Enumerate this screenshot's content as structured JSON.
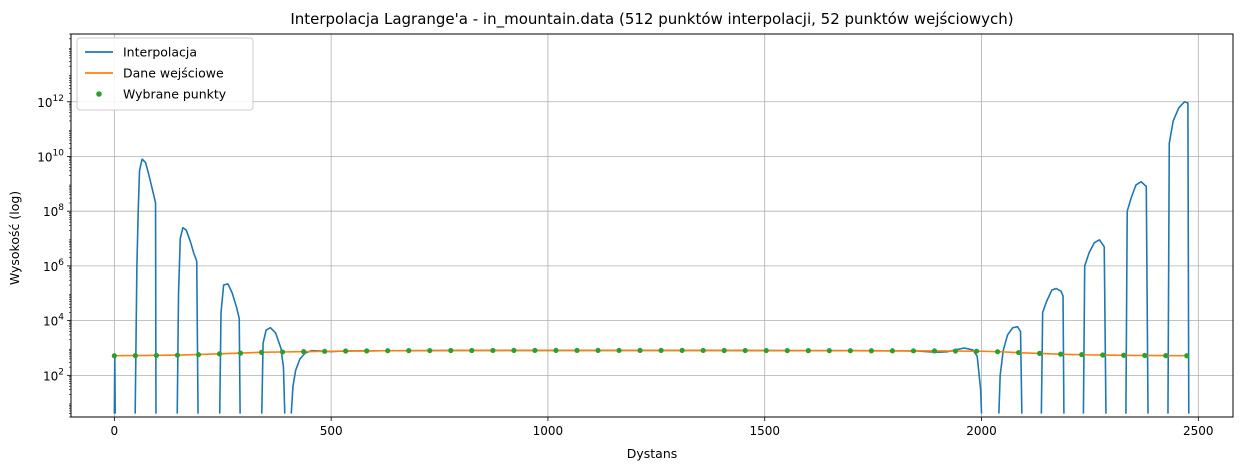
{
  "chart_data": {
    "type": "line",
    "title": "Interpolacja Lagrange'a - in_mountain.data (512 punktów interpolacji, 52 punktów wejściowych)",
    "xlabel": "Dystans",
    "ylabel": "Wysokość (log)",
    "yscale": "log",
    "xlim": [
      -100,
      2580
    ],
    "ylim": [
      3,
      300000000000000
    ],
    "grid": true,
    "legend_position": "top-left",
    "xticks": [
      0,
      500,
      1000,
      1500,
      2000,
      2500
    ],
    "xtick_labels": [
      "0",
      "500",
      "1000",
      "1500",
      "2000",
      "2500"
    ],
    "yticks": [
      100,
      10000,
      1000000,
      100000000,
      10000000000,
      1000000000000
    ],
    "ytick_labels": [
      {
        "base": "10",
        "exp": "2"
      },
      {
        "base": "10",
        "exp": "4"
      },
      {
        "base": "10",
        "exp": "6"
      },
      {
        "base": "10",
        "exp": "8"
      },
      {
        "base": "10",
        "exp": "10"
      },
      {
        "base": "10",
        "exp": "12"
      }
    ],
    "series": [
      {
        "name": "Interpolacja",
        "color": "#1f77b4",
        "segments": [
          [
            [
              0,
              4
            ],
            [
              1,
              520
            ],
            [
              2,
              4
            ]
          ],
          [
            [
              48,
              4
            ],
            [
              52,
              1000000
            ],
            [
              55,
              100000000
            ],
            [
              58,
              3000000000
            ],
            [
              64,
              8000000000
            ],
            [
              72,
              6000000000
            ],
            [
              80,
              2000000000
            ],
            [
              88,
              600000000
            ],
            [
              95,
              200000000
            ],
            [
              96,
              4
            ]
          ],
          [
            [
              145,
              4
            ],
            [
              148,
              100000
            ],
            [
              152,
              10000000
            ],
            [
              158,
              25000000
            ],
            [
              166,
              20000000
            ],
            [
              175,
              8000000
            ],
            [
              183,
              3000000
            ],
            [
              190,
              1500000
            ],
            [
              193,
              4
            ]
          ],
          [
            [
              243,
              4
            ],
            [
              246,
              20000
            ],
            [
              252,
              200000
            ],
            [
              262,
              220000
            ],
            [
              272,
              100000
            ],
            [
              282,
              30000
            ],
            [
              288,
              12000
            ],
            [
              290,
              4
            ]
          ],
          [
            [
              340,
              4
            ],
            [
              343,
              1500
            ],
            [
              350,
              4500
            ],
            [
              360,
              5500
            ],
            [
              372,
              3500
            ],
            [
              384,
              1000
            ],
            [
              390,
              200
            ],
            [
              393,
              4
            ]
          ],
          [
            [
              408,
              4
            ],
            [
              412,
              40
            ],
            [
              418,
              150
            ],
            [
              428,
              400
            ],
            [
              440,
              650
            ],
            [
              455,
              800
            ],
            [
              470,
              780
            ],
            [
              485,
              760
            ],
            [
              500,
              740
            ],
            [
              520,
              760
            ],
            [
              540,
              780
            ],
            [
              600,
              790
            ],
            [
              700,
              800
            ],
            [
              800,
              810
            ],
            [
              900,
              815
            ],
            [
              1000,
              815
            ],
            [
              1100,
              815
            ],
            [
              1200,
              815
            ],
            [
              1300,
              815
            ],
            [
              1400,
              810
            ],
            [
              1500,
              805
            ],
            [
              1600,
              800
            ],
            [
              1700,
              795
            ],
            [
              1800,
              790
            ],
            [
              1850,
              775
            ],
            [
              1880,
              720
            ],
            [
              1900,
              700
            ],
            [
              1920,
              720
            ],
            [
              1940,
              850
            ],
            [
              1960,
              1000
            ],
            [
              1980,
              850
            ],
            [
              1990,
              500
            ],
            [
              1998,
              30
            ],
            [
              2000,
              4
            ]
          ],
          [
            [
              2040,
              4
            ],
            [
              2043,
              100
            ],
            [
              2050,
              800
            ],
            [
              2060,
              3000
            ],
            [
              2072,
              5500
            ],
            [
              2083,
              6000
            ],
            [
              2090,
              4000
            ],
            [
              2093,
              4
            ]
          ],
          [
            [
              2138,
              4
            ],
            [
              2141,
              20000
            ],
            [
              2150,
              50000
            ],
            [
              2162,
              130000
            ],
            [
              2172,
              150000
            ],
            [
              2183,
              120000
            ],
            [
              2188,
              80000
            ],
            [
              2190,
              4
            ]
          ],
          [
            [
              2235,
              4
            ],
            [
              2238,
              1000000
            ],
            [
              2248,
              3000000
            ],
            [
              2260,
              7000000
            ],
            [
              2272,
              9000000
            ],
            [
              2283,
              5000000
            ],
            [
              2287,
              4
            ]
          ],
          [
            [
              2333,
              4
            ],
            [
              2336,
              100000000
            ],
            [
              2345,
              300000000
            ],
            [
              2356,
              900000000
            ],
            [
              2368,
              1200000000
            ],
            [
              2380,
              800000000
            ],
            [
              2384,
              4
            ]
          ],
          [
            [
              2430,
              4
            ],
            [
              2433,
              30000000000
            ],
            [
              2442,
              200000000000
            ],
            [
              2455,
              600000000000
            ],
            [
              2468,
              1000000000000
            ],
            [
              2476,
              900000000000
            ],
            [
              2478,
              4
            ]
          ]
        ]
      },
      {
        "name": "Dane wejściowe",
        "color": "#ff7f0e",
        "points": [
          [
            0,
            520
          ],
          [
            50,
            530
          ],
          [
            100,
            540
          ],
          [
            150,
            550
          ],
          [
            200,
            580
          ],
          [
            250,
            620
          ],
          [
            300,
            660
          ],
          [
            350,
            700
          ],
          [
            400,
            720
          ],
          [
            450,
            740
          ],
          [
            500,
            760
          ],
          [
            550,
            780
          ],
          [
            600,
            790
          ],
          [
            700,
            800
          ],
          [
            800,
            810
          ],
          [
            900,
            815
          ],
          [
            1000,
            815
          ],
          [
            1100,
            815
          ],
          [
            1200,
            815
          ],
          [
            1300,
            815
          ],
          [
            1400,
            810
          ],
          [
            1500,
            805
          ],
          [
            1600,
            800
          ],
          [
            1700,
            795
          ],
          [
            1800,
            790
          ],
          [
            1900,
            780
          ],
          [
            2000,
            760
          ],
          [
            2050,
            720
          ],
          [
            2100,
            660
          ],
          [
            2150,
            620
          ],
          [
            2200,
            580
          ],
          [
            2250,
            560
          ],
          [
            2300,
            545
          ],
          [
            2350,
            535
          ],
          [
            2400,
            528
          ],
          [
            2475,
            520
          ]
        ]
      },
      {
        "name": "Wybrane punkty",
        "color": "#2ca02c",
        "points": [
          [
            0,
            520
          ],
          [
            48.5,
            525
          ],
          [
            97,
            535
          ],
          [
            145.5,
            545
          ],
          [
            194,
            570
          ],
          [
            242.5,
            610
          ],
          [
            291,
            650
          ],
          [
            339.5,
            690
          ],
          [
            388,
            715
          ],
          [
            436.5,
            735
          ],
          [
            485,
            755
          ],
          [
            533.5,
            775
          ],
          [
            582,
            785
          ],
          [
            630.5,
            795
          ],
          [
            679,
            800
          ],
          [
            727.5,
            805
          ],
          [
            776,
            808
          ],
          [
            824.5,
            810
          ],
          [
            873,
            813
          ],
          [
            921.5,
            815
          ],
          [
            970,
            815
          ],
          [
            1018.5,
            815
          ],
          [
            1067,
            815
          ],
          [
            1115.5,
            815
          ],
          [
            1164,
            815
          ],
          [
            1212.5,
            815
          ],
          [
            1261,
            815
          ],
          [
            1309.5,
            815
          ],
          [
            1358,
            813
          ],
          [
            1406.5,
            810
          ],
          [
            1455,
            808
          ],
          [
            1503.5,
            805
          ],
          [
            1552,
            803
          ],
          [
            1600.5,
            800
          ],
          [
            1649,
            798
          ],
          [
            1697.5,
            795
          ],
          [
            1746,
            793
          ],
          [
            1794.5,
            790
          ],
          [
            1843,
            787
          ],
          [
            1891.5,
            782
          ],
          [
            1940,
            775
          ],
          [
            1988.5,
            765
          ],
          [
            2037,
            730
          ],
          [
            2085.5,
            680
          ],
          [
            2134,
            635
          ],
          [
            2182.5,
            595
          ],
          [
            2231,
            570
          ],
          [
            2279.5,
            555
          ],
          [
            2328,
            542
          ],
          [
            2376.5,
            532
          ],
          [
            2425,
            525
          ],
          [
            2473.5,
            520
          ]
        ]
      }
    ]
  }
}
